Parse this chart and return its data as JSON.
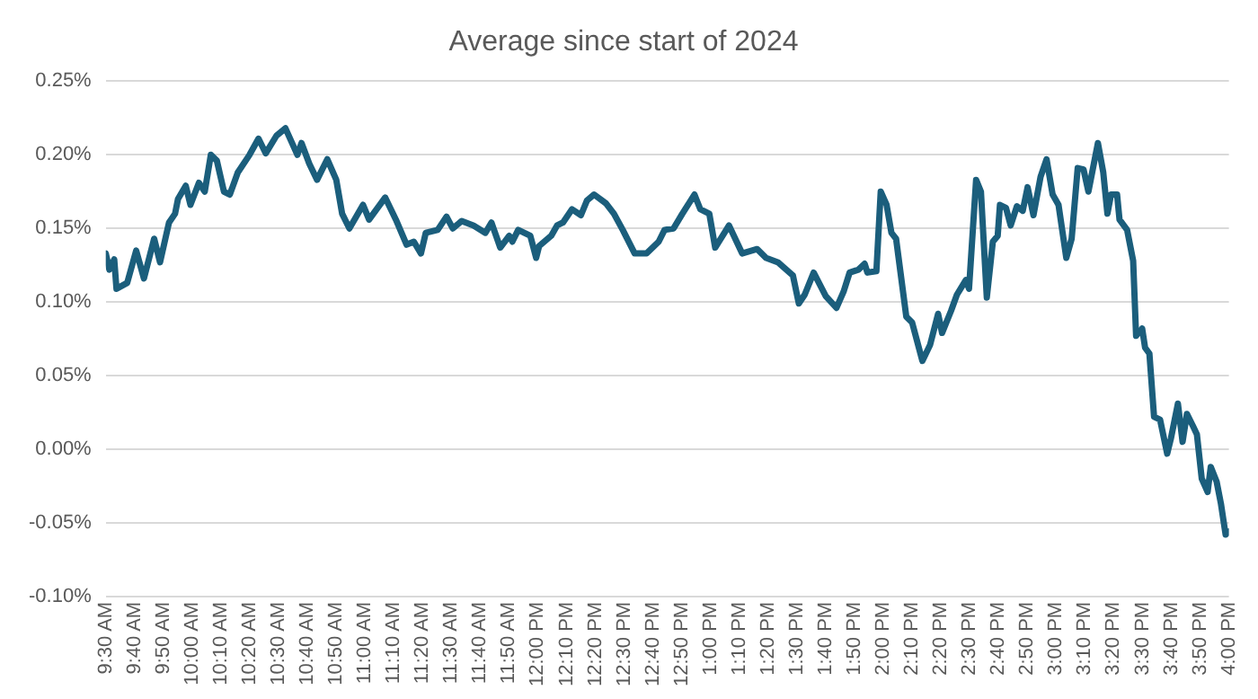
{
  "chart_data": {
    "type": "line",
    "title": "Average since start of 2024",
    "x": [
      9.5,
      9.521,
      9.549,
      9.562,
      9.624,
      9.676,
      9.721,
      9.78,
      9.814,
      9.866,
      9.901,
      9.918,
      9.963,
      9.99,
      10.039,
      10.073,
      10.108,
      10.143,
      10.184,
      10.218,
      10.264,
      10.332,
      10.384,
      10.426,
      10.488,
      10.54,
      10.609,
      10.633,
      10.678,
      10.723,
      10.782,
      10.834,
      10.868,
      10.91,
      10.989,
      11.024,
      11.117,
      11.179,
      11.241,
      11.283,
      11.324,
      11.352,
      11.421,
      11.472,
      11.508,
      11.56,
      11.628,
      11.697,
      11.732,
      11.783,
      11.835,
      11.853,
      11.887,
      11.957,
      11.991,
      12.008,
      12.078,
      12.112,
      12.146,
      12.198,
      12.25,
      12.285,
      12.326,
      12.395,
      12.441,
      12.492,
      12.561,
      12.63,
      12.7,
      12.734,
      12.786,
      12.837,
      12.907,
      12.941,
      12.993,
      13.027,
      13.107,
      13.183,
      13.27,
      13.321,
      13.39,
      13.477,
      13.511,
      13.545,
      13.597,
      13.667,
      13.729,
      13.77,
      13.805,
      13.856,
      13.892,
      13.908,
      13.96,
      13.985,
      14.019,
      14.047,
      14.074,
      14.133,
      14.167,
      14.226,
      14.271,
      14.317,
      14.34,
      14.392,
      14.426,
      14.478,
      14.496,
      14.537,
      14.565,
      14.599,
      14.634,
      14.662,
      14.675,
      14.71,
      14.737,
      14.773,
      14.807,
      14.835,
      14.869,
      14.91,
      14.945,
      14.98,
      15.014,
      15.059,
      15.09,
      15.125,
      15.159,
      15.187,
      15.242,
      15.273,
      15.297,
      15.318,
      15.353,
      15.367,
      15.411,
      15.446,
      15.463,
      15.498,
      15.515,
      15.54,
      15.567,
      15.602,
      15.643,
      15.664,
      15.705,
      15.732,
      15.757,
      15.791,
      15.815,
      15.843,
      15.877,
      15.895,
      15.929,
      15.954,
      15.981,
      16
    ],
    "series": [
      {
        "color": "#1b5e7c",
        "values": [
          0.133,
          0.122,
          0.129,
          0.109,
          0.113,
          0.135,
          0.116,
          0.143,
          0.127,
          0.154,
          0.16,
          0.17,
          0.179,
          0.166,
          0.181,
          0.175,
          0.2,
          0.196,
          0.175,
          0.173,
          0.188,
          0.2,
          0.211,
          0.201,
          0.213,
          0.218,
          0.2,
          0.208,
          0.194,
          0.183,
          0.197,
          0.183,
          0.16,
          0.15,
          0.166,
          0.156,
          0.171,
          0.156,
          0.139,
          0.141,
          0.133,
          0.147,
          0.149,
          0.158,
          0.15,
          0.155,
          0.152,
          0.147,
          0.154,
          0.137,
          0.145,
          0.141,
          0.149,
          0.145,
          0.13,
          0.138,
          0.145,
          0.152,
          0.154,
          0.163,
          0.159,
          0.169,
          0.173,
          0.167,
          0.16,
          0.149,
          0.133,
          0.133,
          0.141,
          0.149,
          0.15,
          0.16,
          0.173,
          0.163,
          0.16,
          0.137,
          0.152,
          0.133,
          0.136,
          0.13,
          0.127,
          0.118,
          0.099,
          0.105,
          0.12,
          0.104,
          0.096,
          0.107,
          0.12,
          0.122,
          0.126,
          0.12,
          0.121,
          0.175,
          0.166,
          0.147,
          0.143,
          0.09,
          0.086,
          0.06,
          0.071,
          0.092,
          0.079,
          0.094,
          0.105,
          0.115,
          0.109,
          0.183,
          0.175,
          0.103,
          0.141,
          0.145,
          0.166,
          0.164,
          0.152,
          0.165,
          0.162,
          0.178,
          0.159,
          0.185,
          0.197,
          0.173,
          0.166,
          0.13,
          0.143,
          0.191,
          0.19,
          0.175,
          0.208,
          0.188,
          0.16,
          0.173,
          0.173,
          0.156,
          0.149,
          0.128,
          0.077,
          0.082,
          0.069,
          0.065,
          0.022,
          0.02,
          -0.003,
          0.007,
          0.031,
          0.005,
          0.024,
          0.016,
          0.01,
          -0.02,
          -0.029,
          -0.012,
          -0.022,
          -0.037,
          -0.058,
          -0.056
        ]
      }
    ],
    "xlim": [
      9.5,
      16
    ],
    "xticks": [
      {
        "value": 9.5,
        "label": "9:30 AM"
      },
      {
        "value": 9.667,
        "label": "9:40 AM"
      },
      {
        "value": 9.833,
        "label": "9:50 AM"
      },
      {
        "value": 10,
        "label": "10:00 AM"
      },
      {
        "value": 10.167,
        "label": "10:10 AM"
      },
      {
        "value": 10.333,
        "label": "10:20 AM"
      },
      {
        "value": 10.5,
        "label": "10:30 AM"
      },
      {
        "value": 10.667,
        "label": "10:40 AM"
      },
      {
        "value": 10.833,
        "label": "10:50 AM"
      },
      {
        "value": 11,
        "label": "11:00 AM"
      },
      {
        "value": 11.167,
        "label": "11:10 AM"
      },
      {
        "value": 11.333,
        "label": "11:20 AM"
      },
      {
        "value": 11.5,
        "label": "11:30 AM"
      },
      {
        "value": 11.667,
        "label": "11:40 AM"
      },
      {
        "value": 11.833,
        "label": "11:50 AM"
      },
      {
        "value": 12,
        "label": "12:00 PM"
      },
      {
        "value": 12.167,
        "label": "12:10 PM"
      },
      {
        "value": 12.333,
        "label": "12:20 PM"
      },
      {
        "value": 12.5,
        "label": "12:30 PM"
      },
      {
        "value": 12.667,
        "label": "12:40 PM"
      },
      {
        "value": 12.833,
        "label": "12:50 PM"
      },
      {
        "value": 13,
        "label": "1:00 PM"
      },
      {
        "value": 13.167,
        "label": "1:10 PM"
      },
      {
        "value": 13.333,
        "label": "1:20 PM"
      },
      {
        "value": 13.5,
        "label": "1:30 PM"
      },
      {
        "value": 13.667,
        "label": "1:40 PM"
      },
      {
        "value": 13.833,
        "label": "1:50 PM"
      },
      {
        "value": 14,
        "label": "2:00 PM"
      },
      {
        "value": 14.167,
        "label": "2:10 PM"
      },
      {
        "value": 14.333,
        "label": "2:20 PM"
      },
      {
        "value": 14.5,
        "label": "2:30 PM"
      },
      {
        "value": 14.667,
        "label": "2:40 PM"
      },
      {
        "value": 14.833,
        "label": "2:50 PM"
      },
      {
        "value": 15,
        "label": "3:00 PM"
      },
      {
        "value": 15.167,
        "label": "3:10 PM"
      },
      {
        "value": 15.333,
        "label": "3:20 PM"
      },
      {
        "value": 15.5,
        "label": "3:30 PM"
      },
      {
        "value": 15.667,
        "label": "3:40 PM"
      },
      {
        "value": 15.833,
        "label": "3:50 PM"
      },
      {
        "value": 16,
        "label": "4:00 PM"
      }
    ],
    "ylim": [
      -0.1,
      0.25
    ],
    "yticks": [
      {
        "value": -0.1,
        "label": "-0.10%"
      },
      {
        "value": -0.05,
        "label": "-0.05%"
      },
      {
        "value": 0,
        "label": "0.00%"
      },
      {
        "value": 0.05,
        "label": "0.05%"
      },
      {
        "value": 0.1,
        "label": "0.10%"
      },
      {
        "value": 0.15,
        "label": "0.15%"
      },
      {
        "value": 0.2,
        "label": "0.20%"
      },
      {
        "value": 0.25,
        "label": "0.25%"
      }
    ],
    "grid": "y"
  }
}
